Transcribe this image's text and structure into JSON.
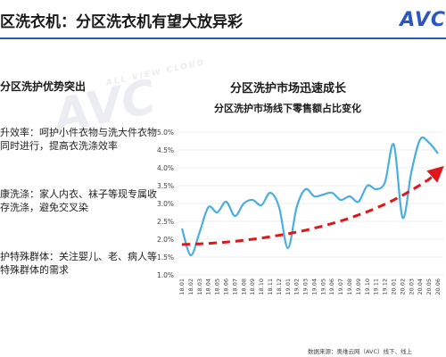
{
  "slide": {
    "title": "区洗衣机：分区洗衣机有望大放异彩",
    "logo": "AVC",
    "watermark": "AVC",
    "watermark_sub": "ALL VIEW CLOUD"
  },
  "left_panel": {
    "heading": "分区洗护优势突出",
    "points": [
      "升效率：呵护小件衣物与洗大件衣物同时进行，提高衣洗涤效率",
      "康洗涤：家人内衣、袜子等现专属收存洗涤，避免交叉染",
      "护特殊群体：关注婴儿、老、病人等特殊群体的需求"
    ]
  },
  "chart_header": {
    "title": "分区洗护市场迅速成长",
    "subtitle": "分区洗护市场线下零售额占比变化"
  },
  "source": "数据来源：奥维云网（AVC）线下、线上",
  "colors": {
    "line": "#4aaee0",
    "trend": "#e0161a",
    "grid": "#d9d9d9",
    "accent": "#2a57c0"
  },
  "chart_data": {
    "type": "line",
    "title": "分区洗护市场线下零售额占比变化",
    "x": [
      "18.01",
      "18.02",
      "18.03",
      "18.04",
      "18.05",
      "18.06",
      "18.07",
      "18.08",
      "18.09",
      "18.10",
      "18.11",
      "18.12",
      "19.01",
      "19.02",
      "19.03",
      "19.04",
      "19.05",
      "19.06",
      "19.07",
      "19.08",
      "19.09",
      "19.10",
      "19.11",
      "19.12",
      "20.01",
      "20.02",
      "20.03",
      "20.04",
      "20.05",
      "20.06"
    ],
    "y_ticks": [
      "1.0%",
      "1.5%",
      "2.0%",
      "2.5%",
      "3.0%",
      "3.5%",
      "4.0%",
      "4.5%",
      "5.0%"
    ],
    "ylim": [
      1.0,
      5.0
    ],
    "grid": true,
    "series": [
      {
        "style": "line",
        "values": [
          2.3,
          1.55,
          2.2,
          2.9,
          2.75,
          3.05,
          2.65,
          3.0,
          3.1,
          2.95,
          3.3,
          2.9,
          1.75,
          2.9,
          3.4,
          3.2,
          3.25,
          3.3,
          3.1,
          3.2,
          3.05,
          3.5,
          3.4,
          3.6,
          4.65,
          2.6,
          3.9,
          4.8,
          4.7,
          4.4
        ]
      },
      {
        "style": "dashed-trend-arrow",
        "values": [
          1.85,
          1.86,
          1.87,
          1.88,
          1.9,
          1.92,
          1.94,
          1.97,
          2.0,
          2.03,
          2.07,
          2.11,
          2.15,
          2.2,
          2.25,
          2.31,
          2.37,
          2.44,
          2.51,
          2.59,
          2.68,
          2.77,
          2.87,
          2.98,
          3.1,
          3.23,
          3.37,
          3.52,
          3.68,
          3.9
        ]
      }
    ]
  }
}
